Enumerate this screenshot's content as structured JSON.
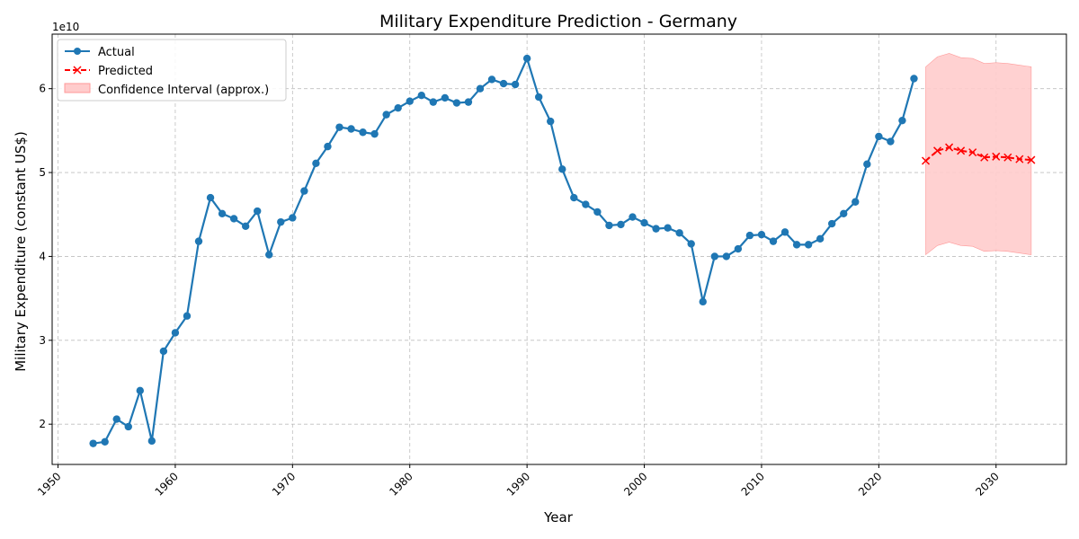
{
  "chart_data": {
    "type": "line",
    "title": "Military Expenditure Prediction - Germany",
    "xlabel": "Year",
    "ylabel": "Military Expenditure (constant US$)",
    "y_offset_label": "1e10",
    "xlim": [
      1949.5,
      2036
    ],
    "ylim": [
      15200000000.0,
      66500000000.0
    ],
    "x_ticks": [
      1950,
      1960,
      1970,
      1980,
      1990,
      2000,
      2010,
      2020,
      2030
    ],
    "y_ticks": [
      20000000000.0,
      30000000000.0,
      40000000000.0,
      50000000000.0,
      60000000000.0
    ],
    "y_tick_labels": [
      "2",
      "3",
      "4",
      "5",
      "6"
    ],
    "grid": true,
    "legend_position": "top-left",
    "legend": [
      "Actual",
      "Predicted",
      "Confidence Interval (approx.)"
    ],
    "colors": {
      "actual": "#1f77b4",
      "predicted": "#ff0000",
      "ci_fill": "#ffcccc",
      "ci_edge": "#ff9999"
    },
    "series": [
      {
        "name": "Actual",
        "marker": "circle",
        "x": [
          1953,
          1954,
          1955,
          1956,
          1957,
          1958,
          1959,
          1960,
          1961,
          1962,
          1963,
          1964,
          1965,
          1966,
          1967,
          1968,
          1969,
          1970,
          1971,
          1972,
          1973,
          1974,
          1975,
          1976,
          1977,
          1978,
          1979,
          1980,
          1981,
          1982,
          1983,
          1984,
          1985,
          1986,
          1987,
          1988,
          1989,
          1990,
          1991,
          1992,
          1993,
          1994,
          1995,
          1996,
          1997,
          1998,
          1999,
          2000,
          2001,
          2002,
          2003,
          2004,
          2005,
          2006,
          2007,
          2008,
          2009,
          2010,
          2011,
          2012,
          2013,
          2014,
          2015,
          2016,
          2017,
          2018,
          2019,
          2020,
          2021,
          2022,
          2023
        ],
        "values": [
          17700000000.0,
          17900000000.0,
          20600000000.0,
          19700000000.0,
          24000000000.0,
          18000000000.0,
          28700000000.0,
          30900000000.0,
          32900000000.0,
          41800000000.0,
          47000000000.0,
          45100000000.0,
          44500000000.0,
          43600000000.0,
          45400000000.0,
          40200000000.0,
          44100000000.0,
          44600000000.0,
          47800000000.0,
          51100000000.0,
          53100000000.0,
          55400000000.0,
          55200000000.0,
          54800000000.0,
          54600000000.0,
          56900000000.0,
          57700000000.0,
          58500000000.0,
          59200000000.0,
          58400000000.0,
          58900000000.0,
          58300000000.0,
          58400000000.0,
          60000000000.0,
          61100000000.0,
          60600000000.0,
          60500000000.0,
          63600000000.0,
          59000000000.0,
          56100000000.0,
          50400000000.0,
          47000000000.0,
          46200000000.0,
          45300000000.0,
          43700000000.0,
          43800000000.0,
          44700000000.0,
          44000000000.0,
          43300000000.0,
          43400000000.0,
          42800000000.0,
          41500000000.0,
          34600000000.0,
          40000000000.0,
          40000000000.0,
          40900000000.0,
          42500000000.0,
          42600000000.0,
          41800000000.0,
          42900000000.0,
          41400000000.0,
          41400000000.0,
          42100000000.0,
          43900000000.0,
          45100000000.0,
          46500000000.0,
          51000000000.0,
          54300000000.0,
          53700000000.0,
          56200000000.0,
          61200000000.0
        ]
      },
      {
        "name": "Predicted",
        "marker": "x",
        "dashed": true,
        "x": [
          2024,
          2025,
          2026,
          2027,
          2028,
          2029,
          2030,
          2031,
          2032,
          2033
        ],
        "values": [
          51400000000.0,
          52600000000.0,
          53000000000.0,
          52600000000.0,
          52400000000.0,
          51800000000.0,
          51900000000.0,
          51800000000.0,
          51600000000.0,
          51500000000.0
        ],
        "ci_lower": [
          40200000000.0,
          41300000000.0,
          41700000000.0,
          41300000000.0,
          41200000000.0,
          40600000000.0,
          40700000000.0,
          40600000000.0,
          40400000000.0,
          40200000000.0
        ],
        "ci_upper": [
          62600000000.0,
          63800000000.0,
          64200000000.0,
          63700000000.0,
          63600000000.0,
          63000000000.0,
          63100000000.0,
          63000000000.0,
          62800000000.0,
          62600000000.0
        ]
      }
    ]
  }
}
